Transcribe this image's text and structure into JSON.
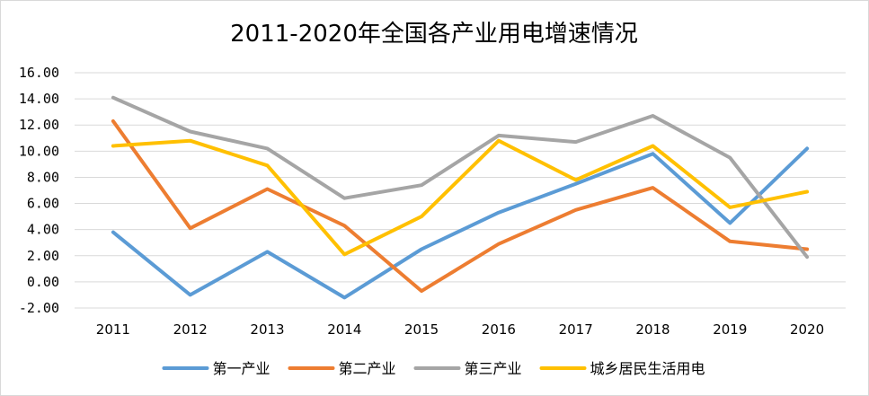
{
  "chart_data": {
    "type": "line",
    "title": "2011-2020年全国各产业用电增速情况",
    "xlabel": "",
    "ylabel": "",
    "categories": [
      "2011",
      "2012",
      "2013",
      "2014",
      "2015",
      "2016",
      "2017",
      "2018",
      "2019",
      "2020"
    ],
    "y_tick_labels": [
      "-2.00",
      "0.00",
      "2.00",
      "4.00",
      "6.00",
      "8.00",
      "10.00",
      "12.00",
      "14.00",
      "16.00"
    ],
    "ylim": [
      -2,
      16
    ],
    "grid": true,
    "legend_position": "bottom",
    "series": [
      {
        "name": "第一产业",
        "color": "#5B9BD5",
        "values": [
          3.8,
          -1.0,
          2.3,
          -1.2,
          2.5,
          5.3,
          7.5,
          9.8,
          4.5,
          10.2
        ]
      },
      {
        "name": "第二产业",
        "color": "#ED7D31",
        "values": [
          12.3,
          4.1,
          7.1,
          4.3,
          -0.7,
          2.9,
          5.5,
          7.2,
          3.1,
          2.5
        ]
      },
      {
        "name": "第三产业",
        "color": "#A5A5A5",
        "values": [
          14.1,
          11.5,
          10.2,
          6.4,
          7.4,
          11.2,
          10.7,
          12.7,
          9.5,
          1.9
        ]
      },
      {
        "name": "城乡居民生活用电",
        "color": "#FFC000",
        "values": [
          10.4,
          10.8,
          8.9,
          2.1,
          5.0,
          10.8,
          7.8,
          10.4,
          5.7,
          6.9
        ]
      }
    ]
  }
}
